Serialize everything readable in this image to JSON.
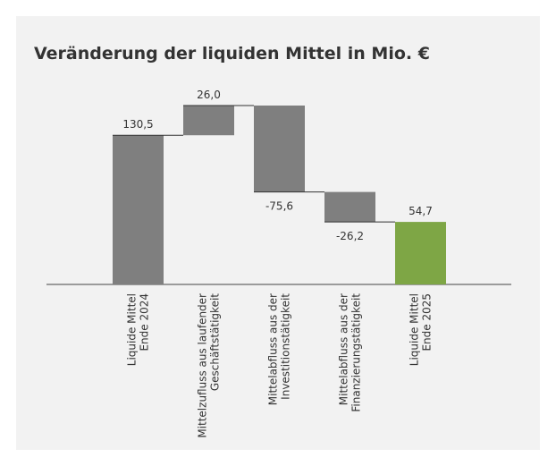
{
  "chart_data": {
    "type": "waterfall",
    "title": "Veränderung der liquiden Mittel in Mio. €",
    "categories": [
      "Liquide Mittel\nEnde 2024",
      "Mittelzufluss aus laufender\nGeschäftstätigkeit",
      "Mittelabfluss aus der\nInvestitionstätigkeit",
      "Mittelabfluss aus der\nFinanzierungstätigkeit",
      "Liquide Mittel\nEnde 2025"
    ],
    "values": [
      130.5,
      26.0,
      -75.6,
      -26.2,
      54.7
    ],
    "value_labels": [
      "130,5",
      "26,0",
      "-75,6",
      "-26,2",
      "54,7"
    ],
    "measure": [
      "absolute",
      "relative",
      "relative",
      "relative",
      "total"
    ],
    "colors": [
      "#7f7f7f",
      "#7f7f7f",
      "#7f7f7f",
      "#7f7f7f",
      "#7ea645"
    ]
  }
}
